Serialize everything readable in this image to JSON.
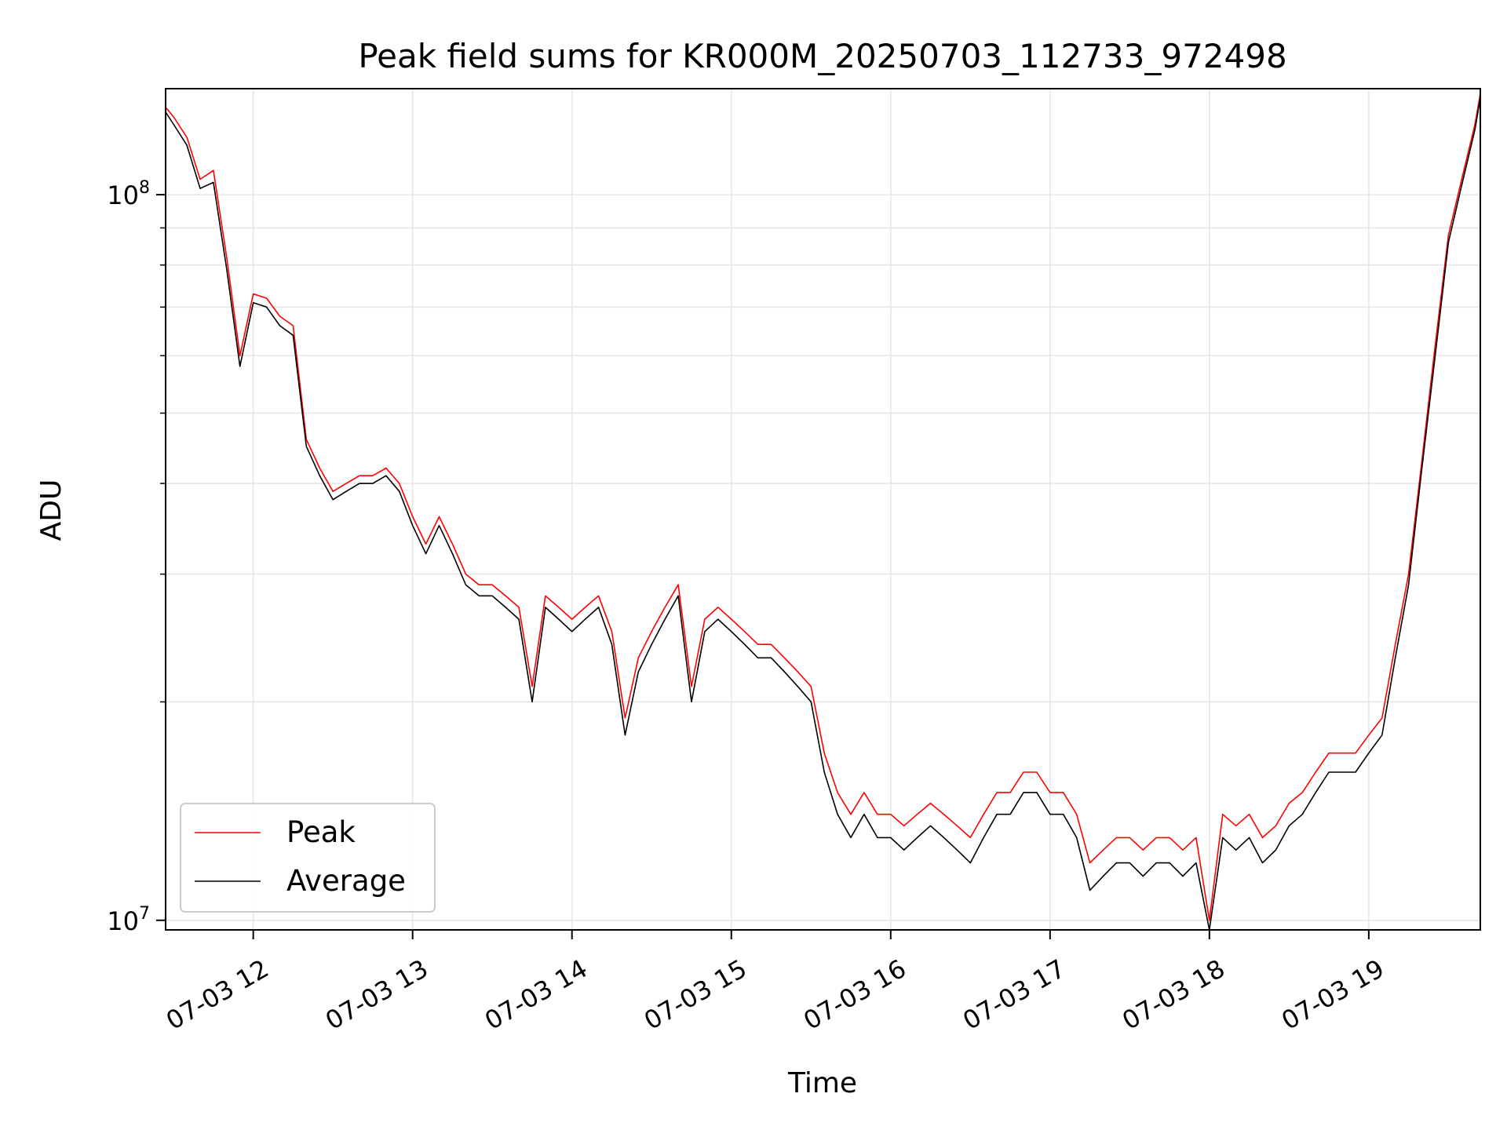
{
  "chart_data": {
    "type": "line",
    "title": "Peak field sums for KR000M_20250703_112733_972498",
    "xlabel": "Time",
    "ylabel": "ADU",
    "yscale": "log",
    "ylim": [
      9700000.0,
      140000000.0
    ],
    "xlim": [
      "07-03 11:27",
      "07-03 19:42"
    ],
    "grid": true,
    "legend_position": "lower-left",
    "x_tick_labels": [
      "07-03 12",
      "07-03 13",
      "07-03 14",
      "07-03 15",
      "07-03 16",
      "07-03 17",
      "07-03 18",
      "07-03 19"
    ],
    "y_tick_labels": [
      {
        "base": "10",
        "exp": "7",
        "value": 10000000.0
      },
      {
        "base": "10",
        "exp": "8",
        "value": 100000000.0
      }
    ],
    "x": [
      "07-03 11:27",
      "07-03 11:30",
      "07-03 11:35",
      "07-03 11:40",
      "07-03 11:45",
      "07-03 11:50",
      "07-03 11:55",
      "07-03 12:00",
      "07-03 12:05",
      "07-03 12:10",
      "07-03 12:15",
      "07-03 12:20",
      "07-03 12:25",
      "07-03 12:30",
      "07-03 12:35",
      "07-03 12:40",
      "07-03 12:45",
      "07-03 12:50",
      "07-03 12:55",
      "07-03 13:00",
      "07-03 13:05",
      "07-03 13:10",
      "07-03 13:15",
      "07-03 13:20",
      "07-03 13:25",
      "07-03 13:30",
      "07-03 13:35",
      "07-03 13:40",
      "07-03 13:45",
      "07-03 13:50",
      "07-03 13:55",
      "07-03 14:00",
      "07-03 14:05",
      "07-03 14:10",
      "07-03 14:15",
      "07-03 14:20",
      "07-03 14:25",
      "07-03 14:30",
      "07-03 14:35",
      "07-03 14:40",
      "07-03 14:45",
      "07-03 14:50",
      "07-03 14:55",
      "07-03 15:00",
      "07-03 15:05",
      "07-03 15:10",
      "07-03 15:15",
      "07-03 15:20",
      "07-03 15:25",
      "07-03 15:30",
      "07-03 15:35",
      "07-03 15:40",
      "07-03 15:45",
      "07-03 15:50",
      "07-03 15:55",
      "07-03 16:00",
      "07-03 16:05",
      "07-03 16:10",
      "07-03 16:15",
      "07-03 16:20",
      "07-03 16:25",
      "07-03 16:30",
      "07-03 16:35",
      "07-03 16:40",
      "07-03 16:45",
      "07-03 16:50",
      "07-03 16:55",
      "07-03 17:00",
      "07-03 17:05",
      "07-03 17:10",
      "07-03 17:15",
      "07-03 17:20",
      "07-03 17:25",
      "07-03 17:30",
      "07-03 17:35",
      "07-03 17:40",
      "07-03 17:45",
      "07-03 17:50",
      "07-03 17:55",
      "07-03 18:00",
      "07-03 18:05",
      "07-03 18:10",
      "07-03 18:15",
      "07-03 18:20",
      "07-03 18:25",
      "07-03 18:30",
      "07-03 18:35",
      "07-03 18:40",
      "07-03 18:45",
      "07-03 18:50",
      "07-03 18:55",
      "07-03 19:00",
      "07-03 19:05",
      "07-03 19:10",
      "07-03 19:15",
      "07-03 19:20",
      "07-03 19:25",
      "07-03 19:30",
      "07-03 19:35",
      "07-03 19:40",
      "07-03 19:42"
    ],
    "series": [
      {
        "name": "Peak",
        "color": "#ff0000",
        "values": [
          132000000.0,
          128000000.0,
          120000000.0,
          105000000.0,
          108000000.0,
          82000000.0,
          60000000.0,
          73000000.0,
          72000000.0,
          68000000.0,
          66000000.0,
          46000000.0,
          42000000.0,
          39000000.0,
          40000000.0,
          41000000.0,
          41000000.0,
          42000000.0,
          40000000.0,
          36000000.0,
          33000000.0,
          36000000.0,
          33000000.0,
          30000000.0,
          29000000.0,
          29000000.0,
          28000000.0,
          27000000.0,
          21000000.0,
          28000000.0,
          27000000.0,
          26000000.0,
          27000000.0,
          28000000.0,
          25000000.0,
          19000000.0,
          23000000.0,
          25000000.0,
          27000000.0,
          29000000.0,
          21000000.0,
          26000000.0,
          27000000.0,
          26000000.0,
          25000000.0,
          24000000.0,
          24000000.0,
          23000000.0,
          22000000.0,
          21000000.0,
          17000000.0,
          15000000.0,
          14000000.0,
          15000000.0,
          14000000.0,
          14000000.0,
          13500000.0,
          14000000.0,
          14500000.0,
          14000000.0,
          13500000.0,
          13000000.0,
          14000000.0,
          15000000.0,
          15000000.0,
          16000000.0,
          16000000.0,
          15000000.0,
          15000000.0,
          14000000.0,
          12000000.0,
          12500000.0,
          13000000.0,
          13000000.0,
          12500000.0,
          13000000.0,
          13000000.0,
          12500000.0,
          13000000.0,
          10000000.0,
          14000000.0,
          13500000.0,
          14000000.0,
          13000000.0,
          13500000.0,
          14500000.0,
          15000000.0,
          16000000.0,
          17000000.0,
          17000000.0,
          17000000.0,
          18000000.0,
          19000000.0,
          24000000.0,
          30000000.0,
          43000000.0,
          62000000.0,
          88000000.0,
          105000000.0,
          125000000.0,
          138000000.0
        ]
      },
      {
        "name": "Average",
        "color": "#000000",
        "values": [
          130000000.0,
          125000000.0,
          117000000.0,
          102000000.0,
          104000000.0,
          79000000.0,
          58000000.0,
          71000000.0,
          70000000.0,
          66000000.0,
          64000000.0,
          45000000.0,
          41000000.0,
          38000000.0,
          39000000.0,
          40000000.0,
          40000000.0,
          41000000.0,
          39000000.0,
          35000000.0,
          32000000.0,
          35000000.0,
          32000000.0,
          29000000.0,
          28000000.0,
          28000000.0,
          27000000.0,
          26000000.0,
          20000000.0,
          27000000.0,
          26000000.0,
          25000000.0,
          26000000.0,
          27000000.0,
          24000000.0,
          18000000.0,
          22000000.0,
          24000000.0,
          26000000.0,
          28000000.0,
          20000000.0,
          25000000.0,
          26000000.0,
          25000000.0,
          24000000.0,
          23000000.0,
          23000000.0,
          22000000.0,
          21000000.0,
          20000000.0,
          16000000.0,
          14000000.0,
          13000000.0,
          14000000.0,
          13000000.0,
          13000000.0,
          12500000.0,
          13000000.0,
          13500000.0,
          13000000.0,
          12500000.0,
          12000000.0,
          13000000.0,
          14000000.0,
          14000000.0,
          15000000.0,
          15000000.0,
          14000000.0,
          14000000.0,
          13000000.0,
          11000000.0,
          11500000.0,
          12000000.0,
          12000000.0,
          11500000.0,
          12000000.0,
          12000000.0,
          11500000.0,
          12000000.0,
          9700000.0,
          13000000.0,
          12500000.0,
          13000000.0,
          12000000.0,
          12500000.0,
          13500000.0,
          14000000.0,
          15000000.0,
          16000000.0,
          16000000.0,
          16000000.0,
          17000000.0,
          18000000.0,
          23000000.0,
          29000000.0,
          42000000.0,
          60000000.0,
          86000000.0,
          103000000.0,
          123000000.0,
          136000000.0
        ]
      }
    ]
  }
}
